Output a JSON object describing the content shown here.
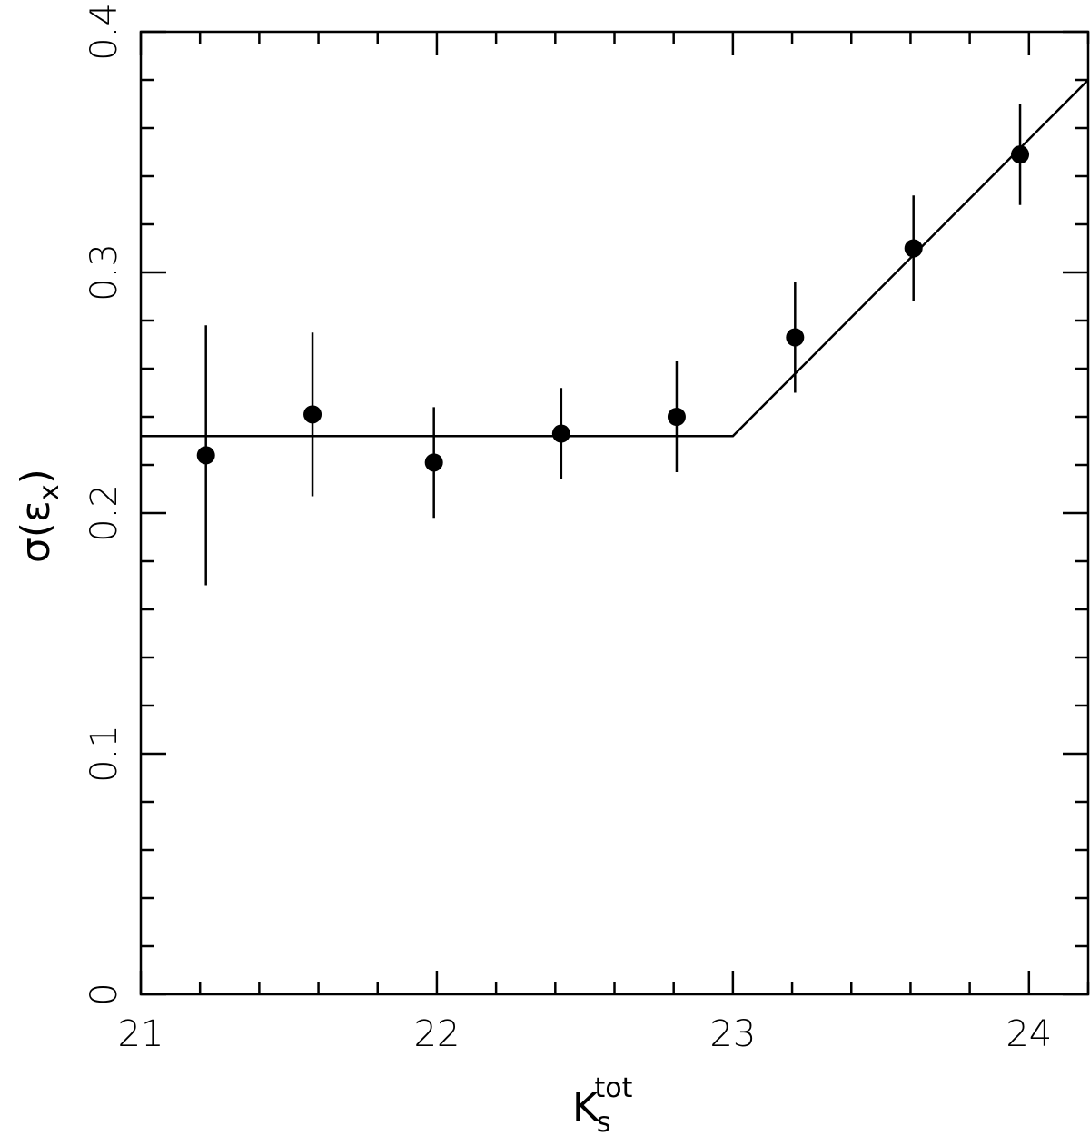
{
  "chart_data": {
    "type": "scatter",
    "title": "",
    "xlabel": {
      "main": "K",
      "sub": "s",
      "sup": "tot"
    },
    "ylabel": {
      "pre": "σ(",
      "main": "ε",
      "sub": "x",
      "post": ")"
    },
    "xlim": [
      21,
      24.2
    ],
    "ylim": [
      0,
      0.4
    ],
    "xticks": [
      21,
      22,
      23,
      24
    ],
    "xtick_labels": [
      "21",
      "22",
      "23",
      "24"
    ],
    "yticks": [
      0,
      0.1,
      0.2,
      0.3,
      0.4
    ],
    "ytick_labels": [
      "0",
      "0.1",
      "0.2",
      "0.3",
      "0.4"
    ],
    "x_minor_step": 0.2,
    "y_minor_step": 0.02,
    "grid": false,
    "legend": "none",
    "series": [
      {
        "kind": "points_with_errorbars",
        "x": [
          21.22,
          21.58,
          21.99,
          22.42,
          22.81,
          23.21,
          23.61,
          23.97
        ],
        "y": [
          0.224,
          0.241,
          0.221,
          0.233,
          0.24,
          0.273,
          0.31,
          0.349
        ],
        "yerr": [
          0.054,
          0.034,
          0.023,
          0.019,
          0.023,
          0.023,
          0.022,
          0.021
        ]
      },
      {
        "kind": "model_line",
        "x": [
          21,
          23.0,
          24.2
        ],
        "y": [
          0.232,
          0.232,
          0.38
        ]
      }
    ]
  }
}
